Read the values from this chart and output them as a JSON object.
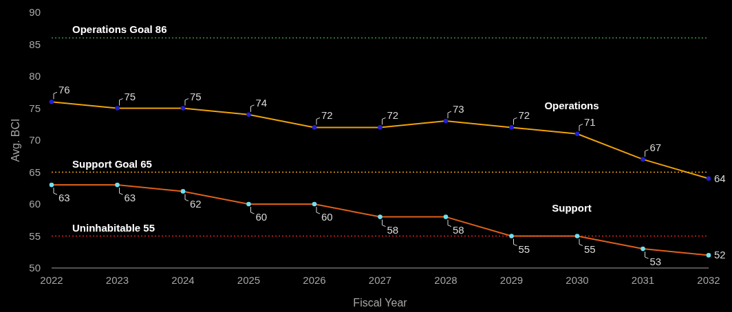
{
  "chart_data": {
    "type": "line",
    "xlabel": "Fiscal Year",
    "ylabel": "Avg. BCI",
    "x": [
      2022,
      2023,
      2024,
      2025,
      2026,
      2027,
      2028,
      2029,
      2030,
      2031,
      2032
    ],
    "xlim": [
      2022,
      2032
    ],
    "xticks": [
      2022,
      2023,
      2024,
      2025,
      2026,
      2027,
      2028,
      2029,
      2030,
      2031,
      2032
    ],
    "ylim": [
      50,
      90
    ],
    "yticks": [
      50,
      55,
      60,
      65,
      70,
      75,
      80,
      85,
      90
    ],
    "grid": false,
    "marker": "circle",
    "line_style": "solid",
    "data_labels": true,
    "series": [
      {
        "name": "Operations",
        "color": "#f0a30a",
        "colors": [
          "#2020d0",
          "#2020d0",
          "#2020d0",
          "#2020d0",
          "#2020d0",
          "#2020d0",
          "#2020d0",
          "#2020d0",
          "#2020d0",
          "#2020d0",
          "#2020d0"
        ],
        "values": [
          76,
          75,
          75,
          74,
          72,
          72,
          73,
          72,
          71,
          67,
          64
        ]
      },
      {
        "name": "Support",
        "color": "#e0601a",
        "colors": [
          "#6ee0f0",
          "#6ee0f0",
          "#6ee0f0",
          "#6ee0f0",
          "#6ee0f0",
          "#6ee0f0",
          "#6ee0f0",
          "#6ee0f0",
          "#6ee0f0",
          "#6ee0f0",
          "#6ee0f0"
        ],
        "values": [
          63,
          63,
          62,
          60,
          60,
          58,
          58,
          55,
          55,
          53,
          52
        ]
      }
    ],
    "ref_lines": [
      {
        "axis": "y",
        "value": 86,
        "label": "Operations Goal 86",
        "color": "#4caf50",
        "line_style": "dotted"
      },
      {
        "axis": "y",
        "value": 65,
        "label": "Support Goal 65",
        "color": "#f0a30a",
        "line_style": "dotted"
      },
      {
        "axis": "y",
        "value": 55,
        "label": "Uninhabitable 55",
        "color": "#e02020",
        "line_style": "dotted"
      }
    ]
  }
}
